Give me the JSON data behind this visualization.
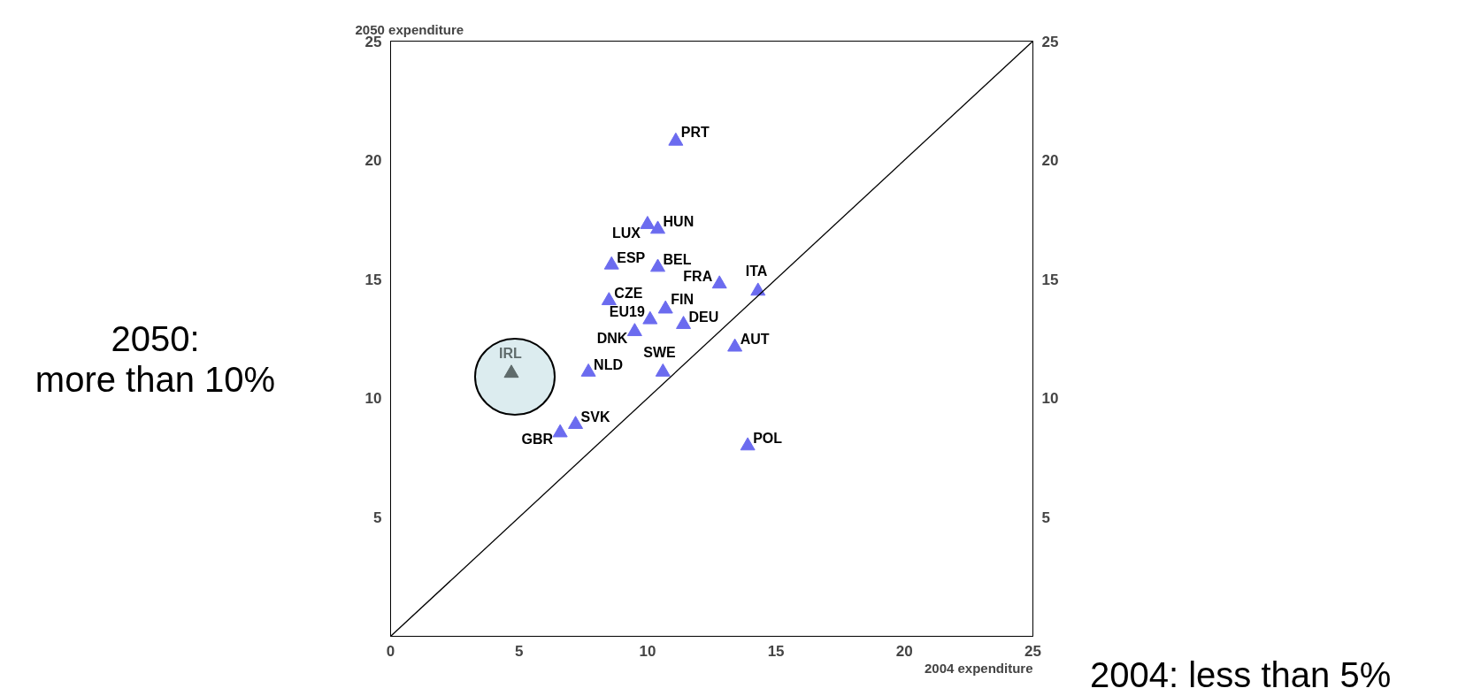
{
  "chart_data": {
    "type": "scatter",
    "xlabel": "2004 expenditure",
    "ylabel": "2050 expenditure",
    "xlim": [
      0,
      25
    ],
    "ylim": [
      0,
      25
    ],
    "xticks": [
      0,
      5,
      10,
      15,
      20,
      25
    ],
    "yticks": [
      5,
      10,
      15,
      20,
      25
    ],
    "y2lim": [
      0,
      25
    ],
    "y2ticks": [
      5,
      10,
      15,
      20,
      25
    ],
    "grid": false,
    "series": [
      {
        "marker": "triangle",
        "color": "#6b6bef",
        "x": [
          11.1,
          10.0,
          10.4,
          8.6,
          10.4,
          12.8,
          14.3,
          8.5,
          10.7,
          10.1,
          11.4,
          9.5,
          13.4,
          10.6,
          7.7,
          7.2,
          6.6,
          13.9
        ],
        "values": [
          20.8,
          17.3,
          17.1,
          15.6,
          15.5,
          14.8,
          14.5,
          14.1,
          13.75,
          13.3,
          13.1,
          12.8,
          12.15,
          11.1,
          11.1,
          8.9,
          8.55,
          8.0
        ]
      },
      {
        "marker": "triangle",
        "color": "#5f6b6b",
        "x": [
          4.7
        ],
        "values": [
          11.05
        ]
      },
      {
        "type": "line",
        "color": "#000000",
        "x": [
          0,
          25
        ],
        "values": [
          0,
          25
        ]
      }
    ],
    "annotations": [
      {
        "text": "PRT",
        "x": 11.1,
        "y": 20.8
      },
      {
        "text": "LUX",
        "x": 10.0,
        "y": 17.3
      },
      {
        "text": "HUN",
        "x": 10.4,
        "y": 17.1
      },
      {
        "text": "ESP",
        "x": 8.6,
        "y": 15.6
      },
      {
        "text": "BEL",
        "x": 10.4,
        "y": 15.5
      },
      {
        "text": "FRA",
        "x": 12.8,
        "y": 14.8
      },
      {
        "text": "ITA",
        "x": 14.3,
        "y": 14.5
      },
      {
        "text": "CZE",
        "x": 8.5,
        "y": 14.1
      },
      {
        "text": "FIN",
        "x": 10.7,
        "y": 13.75
      },
      {
        "text": "EU19",
        "x": 10.1,
        "y": 13.3
      },
      {
        "text": "DEU",
        "x": 11.4,
        "y": 13.1
      },
      {
        "text": "DNK",
        "x": 9.5,
        "y": 12.8
      },
      {
        "text": "AUT",
        "x": 13.4,
        "y": 12.15
      },
      {
        "text": "SWE",
        "x": 10.6,
        "y": 11.1
      },
      {
        "text": "NLD",
        "x": 7.7,
        "y": 11.1
      },
      {
        "text": "SVK",
        "x": 7.2,
        "y": 8.9
      },
      {
        "text": "GBR",
        "x": 6.6,
        "y": 8.55
      },
      {
        "text": "POL",
        "x": 13.9,
        "y": 8.0
      },
      {
        "text": "IRL",
        "x": 4.7,
        "y": 11.05
      },
      "2050:\nmore than 10%",
      "2004: less than 5%"
    ]
  }
}
